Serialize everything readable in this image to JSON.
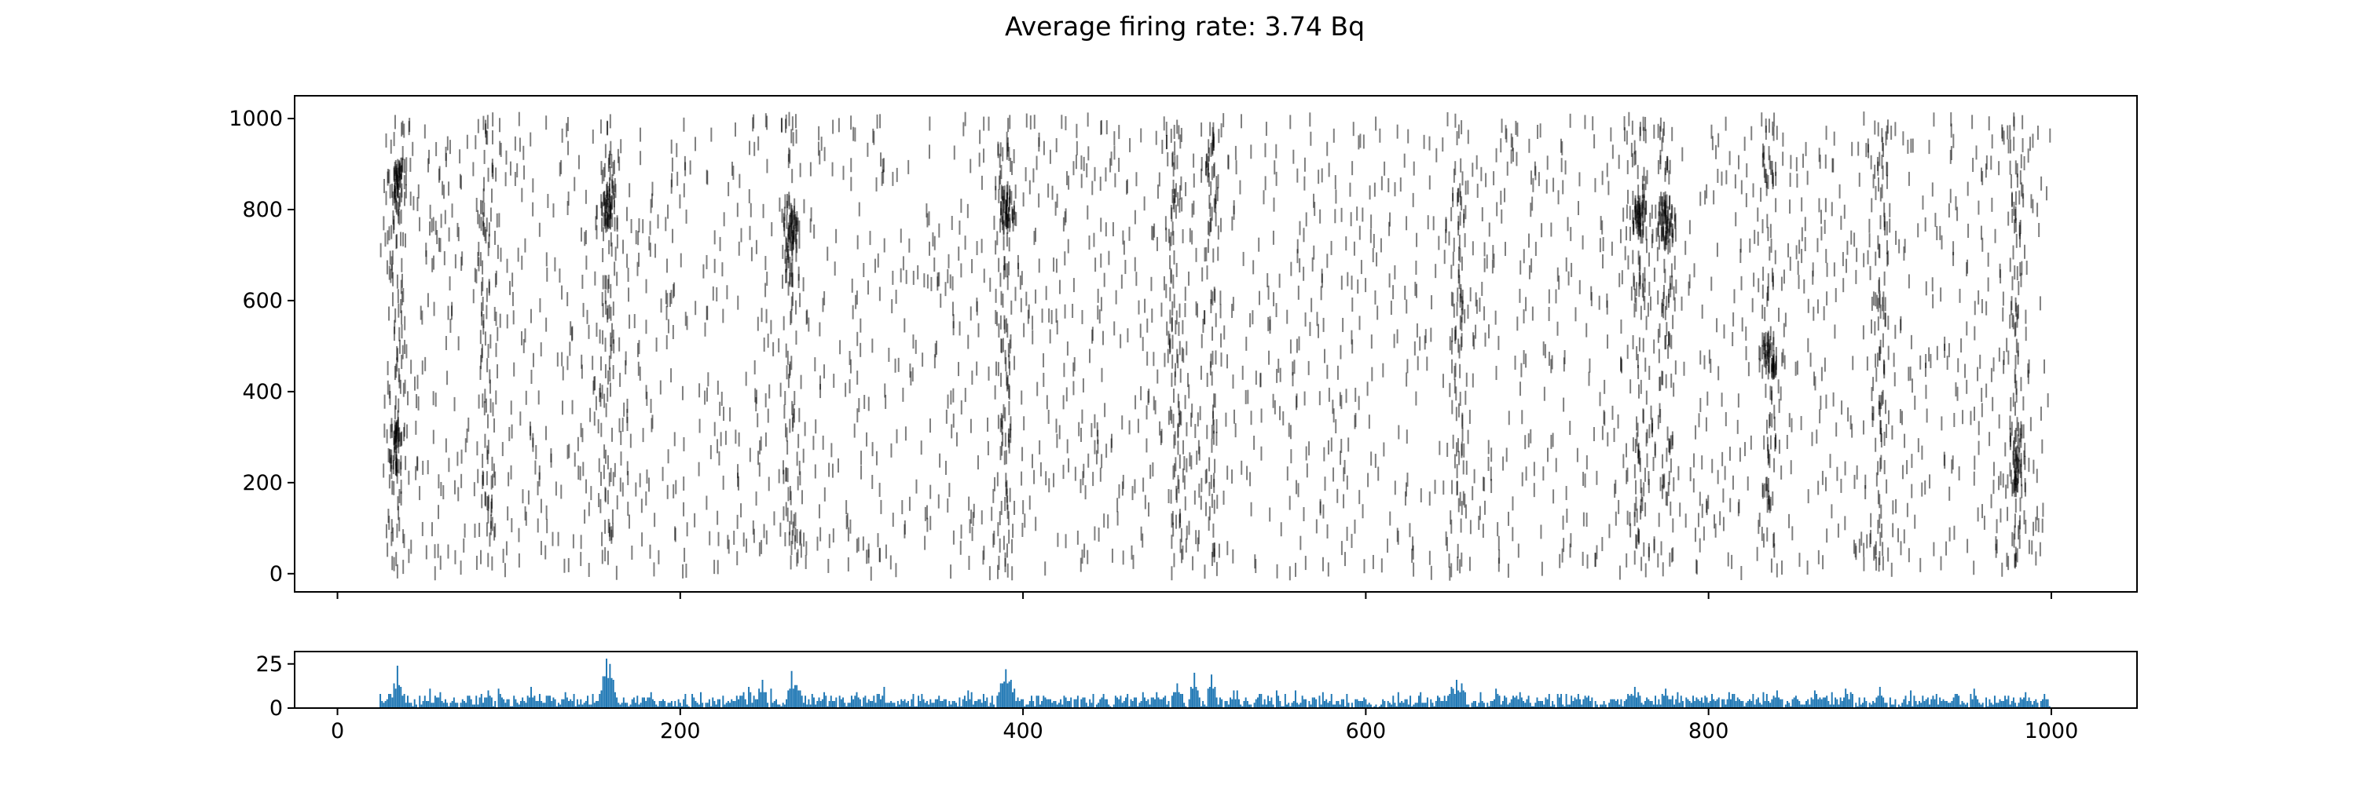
{
  "chart_data": [
    {
      "type": "scatter",
      "subtype": "raster",
      "title": "Average firing rate: 3.74 Bq",
      "xlim": [
        -25,
        1050
      ],
      "ylim": [
        -40,
        1050
      ],
      "xticks": [
        0,
        200,
        400,
        600,
        800,
        1000
      ],
      "yticks": [
        0,
        200,
        400,
        600,
        800,
        1000
      ],
      "xtick_labels_visible": false,
      "grid": false,
      "marker": "vertical tick",
      "marker_color": "#000000",
      "marker_alpha": 0.5,
      "neuron_count": 1000,
      "time_range": [
        25,
        1000
      ],
      "avg_firing_rate": 3.74,
      "firing_rate_unit": "Bq",
      "burst_times": [
        35,
        87,
        158,
        265,
        390,
        490,
        510,
        655,
        760,
        775,
        835,
        900,
        980
      ],
      "dense_bands": [
        {
          "t": 35,
          "neurons": [
            820,
            900
          ]
        },
        {
          "t": 35,
          "neurons": [
            230,
            330
          ]
        },
        {
          "t": 158,
          "neurons": [
            760,
            850
          ]
        },
        {
          "t": 265,
          "neurons": [
            720,
            820
          ]
        },
        {
          "t": 390,
          "neurons": [
            760,
            840
          ]
        },
        {
          "t": 760,
          "neurons": [
            740,
            820
          ]
        },
        {
          "t": 775,
          "neurons": [
            740,
            820
          ]
        },
        {
          "t": 835,
          "neurons": [
            440,
            520
          ]
        },
        {
          "t": 980,
          "neurons": [
            180,
            320
          ]
        }
      ]
    },
    {
      "type": "bar",
      "subtype": "histogram",
      "title": "",
      "xlim": [
        -25,
        1050
      ],
      "ylim": [
        0,
        32
      ],
      "xticks": [
        0,
        200,
        400,
        600,
        800,
        1000
      ],
      "xtick_labels": [
        "0",
        "200",
        "400",
        "600",
        "800",
        "1000"
      ],
      "yticks": [
        0,
        25
      ],
      "ytick_labels": [
        "0",
        "25"
      ],
      "bin_width": 1,
      "color": "#1f77b4",
      "baseline": 4,
      "peaks": [
        {
          "x": 30,
          "y": 8
        },
        {
          "x": 33,
          "y": 14
        },
        {
          "x": 35,
          "y": 24
        },
        {
          "x": 37,
          "y": 12
        },
        {
          "x": 88,
          "y": 10
        },
        {
          "x": 113,
          "y": 12
        },
        {
          "x": 133,
          "y": 9
        },
        {
          "x": 155,
          "y": 18
        },
        {
          "x": 157,
          "y": 28
        },
        {
          "x": 159,
          "y": 25
        },
        {
          "x": 183,
          "y": 9
        },
        {
          "x": 248,
          "y": 16
        },
        {
          "x": 265,
          "y": 21
        },
        {
          "x": 268,
          "y": 13
        },
        {
          "x": 387,
          "y": 14
        },
        {
          "x": 390,
          "y": 22
        },
        {
          "x": 393,
          "y": 16
        },
        {
          "x": 478,
          "y": 9
        },
        {
          "x": 490,
          "y": 14
        },
        {
          "x": 500,
          "y": 20
        },
        {
          "x": 510,
          "y": 19
        },
        {
          "x": 523,
          "y": 10
        },
        {
          "x": 650,
          "y": 12
        },
        {
          "x": 653,
          "y": 16
        },
        {
          "x": 656,
          "y": 14
        },
        {
          "x": 690,
          "y": 9
        },
        {
          "x": 757,
          "y": 12
        },
        {
          "x": 775,
          "y": 11
        },
        {
          "x": 840,
          "y": 10
        },
        {
          "x": 862,
          "y": 10
        },
        {
          "x": 900,
          "y": 12
        },
        {
          "x": 955,
          "y": 11
        },
        {
          "x": 985,
          "y": 9
        },
        {
          "x": 996,
          "y": 8
        }
      ]
    }
  ]
}
